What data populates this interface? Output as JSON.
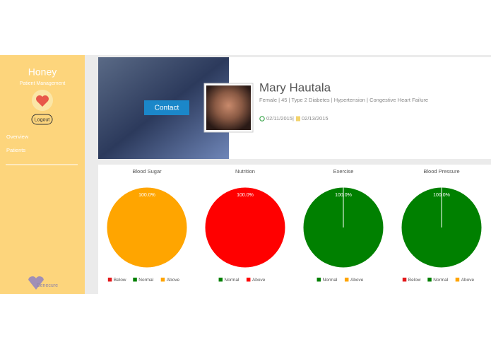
{
  "sidebar": {
    "title": "Honey",
    "subtitle": "Patient Management",
    "logout": "Logout",
    "nav": [
      "Overview",
      "Patients"
    ],
    "brand": "Benecure"
  },
  "profile": {
    "contact": "Contact",
    "name": "Mary Hautala",
    "details": "Female | 45 | Type 2 Diabetes | Hypertension | Congestive Heart Failure",
    "date_start": "02/11/2015",
    "date_separator": "|",
    "date_end": "02/13/2015"
  },
  "chart_data": [
    {
      "type": "pie",
      "title": "Blood Sugar",
      "categories": [
        "Below",
        "Normal",
        "Above"
      ],
      "values": [
        0,
        0,
        100
      ],
      "value_labels": [
        null,
        null,
        "100.0%"
      ],
      "colors": [
        "#e31a1c",
        "#008000",
        "#ffa500"
      ]
    },
    {
      "type": "pie",
      "title": "Nutrition",
      "categories": [
        "Normal",
        "Above"
      ],
      "values": [
        0,
        100
      ],
      "value_labels": [
        null,
        "100.0%"
      ],
      "colors": [
        "#008000",
        "#ff0000"
      ]
    },
    {
      "type": "pie",
      "title": "Exercise",
      "categories": [
        "Normal",
        "Above"
      ],
      "values": [
        100,
        0
      ],
      "value_labels": [
        "100.0%",
        null
      ],
      "colors": [
        "#008000",
        "#ffa500"
      ]
    },
    {
      "type": "pie",
      "title": "Blood Pressure",
      "categories": [
        "Below",
        "Normal",
        "Above"
      ],
      "values": [
        0,
        100,
        0
      ],
      "value_labels": [
        null,
        "100.0%",
        null
      ],
      "colors": [
        "#e31a1c",
        "#008000",
        "#ffa500"
      ]
    }
  ]
}
